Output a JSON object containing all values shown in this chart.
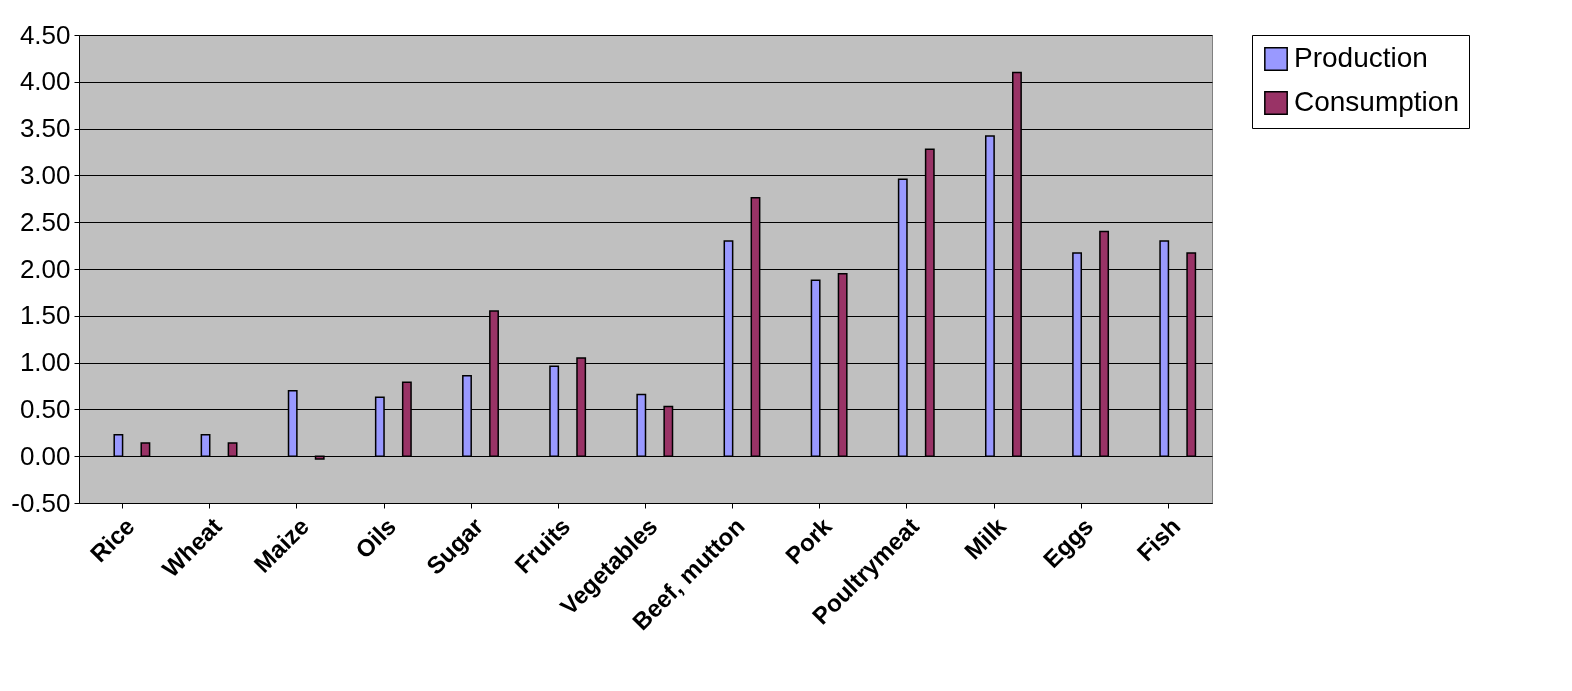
{
  "chart_data": {
    "type": "bar",
    "categories": [
      "Rice",
      "Wheat",
      "Maize",
      "Oils",
      "Sugar",
      "Fruits",
      "Vegetables",
      "Beef, mutton",
      "Pork",
      "Poultrymeat",
      "Milk",
      "Eggs",
      "Fish"
    ],
    "series": [
      {
        "name": "Production",
        "color": "#9999ff",
        "values": [
          0.23,
          0.23,
          0.7,
          0.63,
          0.86,
          0.96,
          0.66,
          2.3,
          1.88,
          2.96,
          3.42,
          2.17,
          2.3
        ]
      },
      {
        "name": "Consumption",
        "color": "#993366",
        "values": [
          0.14,
          0.14,
          -0.03,
          0.79,
          1.55,
          1.05,
          0.53,
          2.76,
          1.95,
          3.28,
          4.1,
          2.4,
          2.17
        ]
      }
    ],
    "ylim": [
      -0.5,
      4.5
    ],
    "yticks": [
      {
        "value": -0.5,
        "label": "-0.50"
      },
      {
        "value": 0,
        "label": "0.00"
      },
      {
        "value": 0.5,
        "label": "0.50"
      },
      {
        "value": 1,
        "label": "1.00"
      },
      {
        "value": 1.5,
        "label": "1.50"
      },
      {
        "value": 2,
        "label": "2.00"
      },
      {
        "value": 2.5,
        "label": "2.50"
      },
      {
        "value": 3,
        "label": "3.00"
      },
      {
        "value": 3.5,
        "label": "3.50"
      },
      {
        "value": 4,
        "label": "4.00"
      },
      {
        "value": 4.5,
        "label": "4.50"
      }
    ],
    "grid": "y",
    "legend": "right"
  }
}
